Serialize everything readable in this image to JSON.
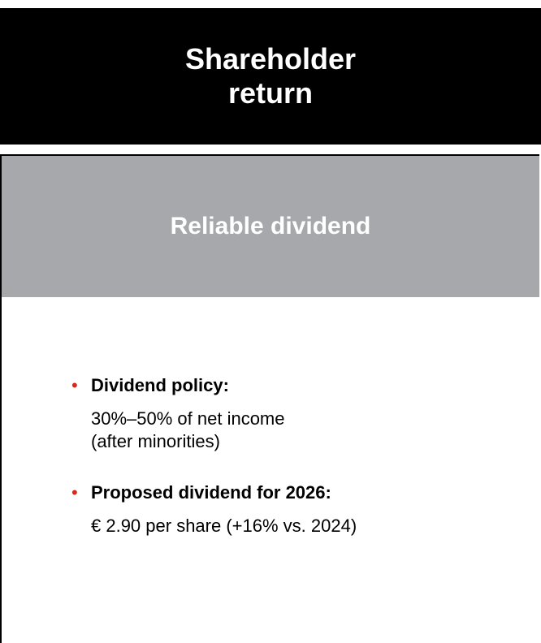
{
  "header": {
    "title": "Shareholder\nreturn"
  },
  "panel": {
    "title": "Reliable dividend",
    "items": [
      {
        "heading": "Dividend policy:",
        "text": "30%–50% of net income\n(after minorities)"
      },
      {
        "heading": "Proposed dividend for 2026:",
        "text": "€ 2.90 per share (+16% vs. 2024)"
      }
    ]
  }
}
